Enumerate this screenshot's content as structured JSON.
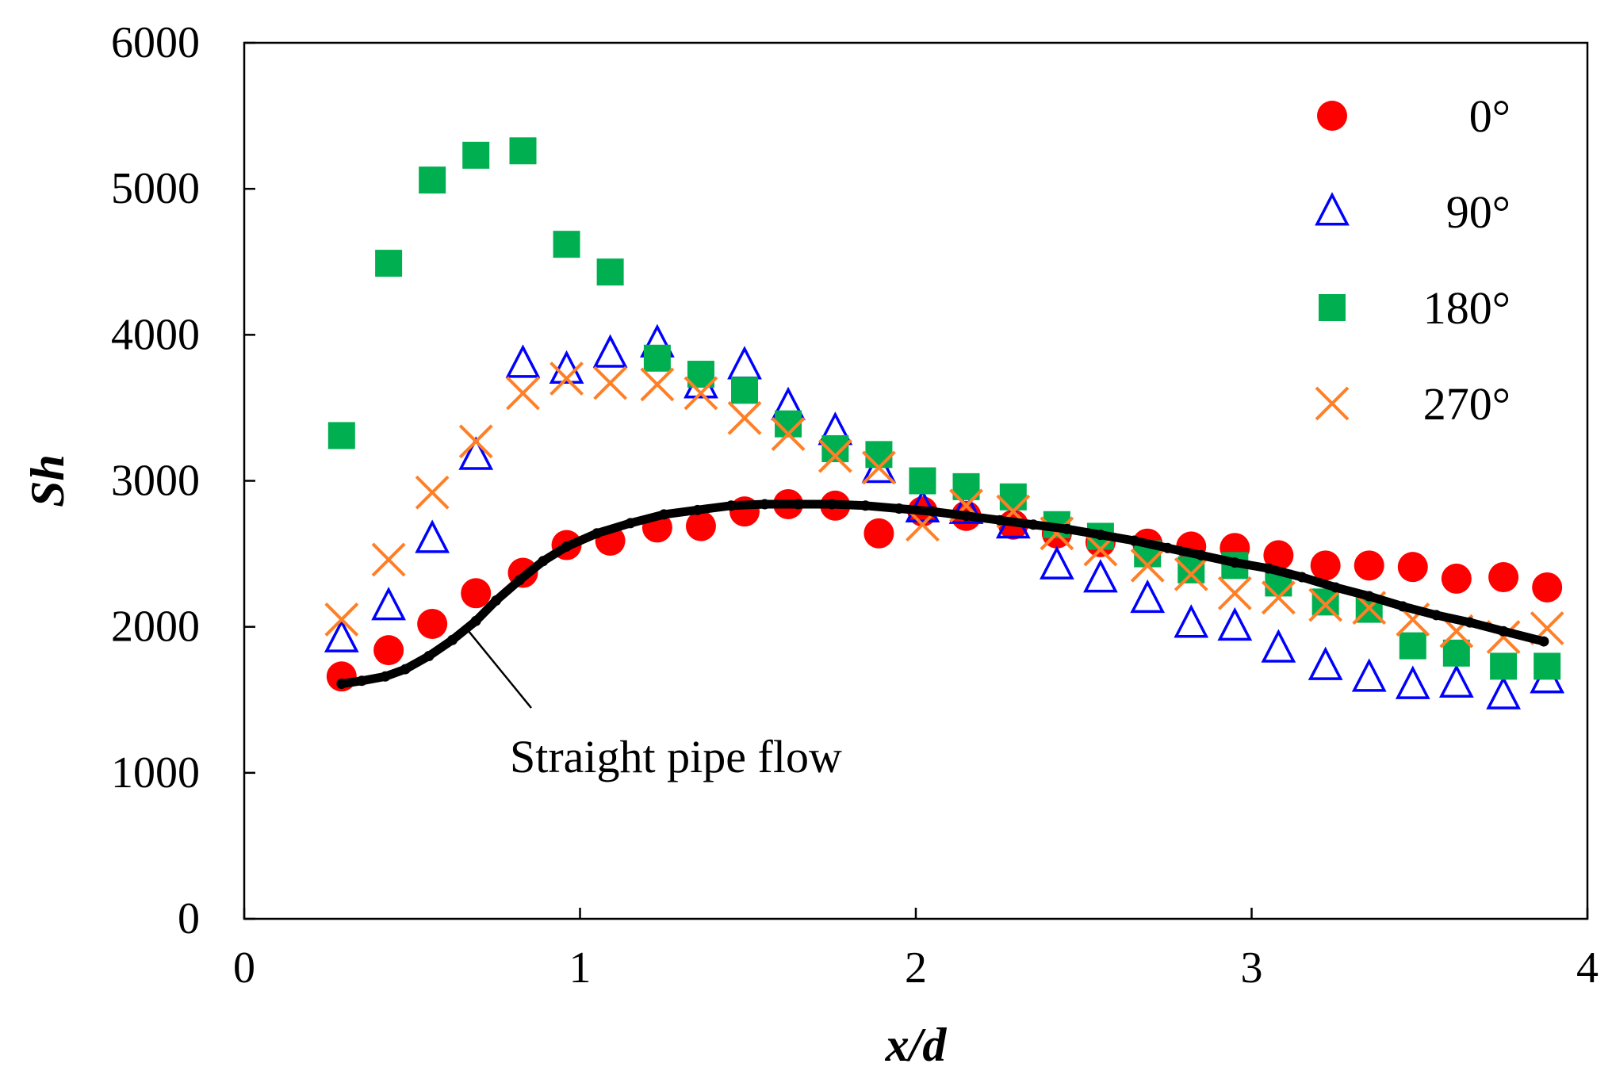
{
  "chart_data": {
    "type": "scatter",
    "title": "",
    "xlabel": "x/d",
    "ylabel": "Sh",
    "xlim": [
      0,
      4
    ],
    "ylim": [
      0,
      6000
    ],
    "xticks": [
      0,
      1,
      2,
      3,
      4
    ],
    "yticks": [
      0,
      1000,
      2000,
      3000,
      4000,
      5000,
      6000
    ],
    "legend_position": "top-right",
    "series": [
      {
        "name": "0°",
        "marker": "circle-filled",
        "color": "#ff0000",
        "x": [
          0.29,
          0.43,
          0.56,
          0.69,
          0.83,
          0.96,
          1.09,
          1.23,
          1.36,
          1.49,
          1.62,
          1.76,
          1.89,
          2.02,
          2.15,
          2.29,
          2.42,
          2.55,
          2.69,
          2.82,
          2.95,
          3.08,
          3.22,
          3.35,
          3.48,
          3.61,
          3.75,
          3.88
        ],
        "y": [
          1660,
          1840,
          2020,
          2230,
          2370,
          2560,
          2590,
          2680,
          2690,
          2790,
          2840,
          2830,
          2640,
          2790,
          2760,
          2700,
          2640,
          2580,
          2570,
          2550,
          2540,
          2490,
          2420,
          2420,
          2410,
          2330,
          2340,
          2270
        ]
      },
      {
        "name": "90°",
        "marker": "triangle-open",
        "color": "#0000ff",
        "x": [
          0.29,
          0.43,
          0.56,
          0.69,
          0.83,
          0.96,
          1.09,
          1.23,
          1.36,
          1.49,
          1.62,
          1.76,
          1.89,
          2.02,
          2.15,
          2.29,
          2.42,
          2.55,
          2.69,
          2.82,
          2.95,
          3.08,
          3.22,
          3.35,
          3.48,
          3.61,
          3.75,
          3.88
        ],
        "y": [
          1920,
          2140,
          2600,
          3170,
          3800,
          3760,
          3870,
          3940,
          3660,
          3790,
          3510,
          3340,
          3080,
          2810,
          2800,
          2700,
          2420,
          2330,
          2190,
          2020,
          2000,
          1850,
          1730,
          1650,
          1600,
          1610,
          1530,
          1640
        ]
      },
      {
        "name": "180°",
        "marker": "square-filled",
        "color": "#00b050",
        "x": [
          0.29,
          0.43,
          0.56,
          0.69,
          0.83,
          0.96,
          1.09,
          1.23,
          1.36,
          1.49,
          1.62,
          1.76,
          1.89,
          2.02,
          2.15,
          2.29,
          2.42,
          2.55,
          2.69,
          2.82,
          2.95,
          3.08,
          3.22,
          3.35,
          3.48,
          3.61,
          3.75,
          3.88
        ],
        "y": [
          3310,
          4490,
          5060,
          5230,
          5260,
          4620,
          4430,
          3840,
          3730,
          3620,
          3390,
          3220,
          3180,
          3000,
          2960,
          2890,
          2700,
          2620,
          2500,
          2390,
          2420,
          2300,
          2170,
          2120,
          1870,
          1820,
          1730,
          1730
        ]
      },
      {
        "name": "270°",
        "marker": "x",
        "color": "#ff7f27",
        "x": [
          0.29,
          0.43,
          0.56,
          0.69,
          0.83,
          0.96,
          1.09,
          1.23,
          1.36,
          1.49,
          1.62,
          1.76,
          1.89,
          2.02,
          2.15,
          2.29,
          2.42,
          2.55,
          2.69,
          2.82,
          2.95,
          3.08,
          3.22,
          3.35,
          3.48,
          3.61,
          3.75,
          3.88
        ],
        "y": [
          2050,
          2460,
          2920,
          3270,
          3600,
          3700,
          3670,
          3660,
          3600,
          3430,
          3320,
          3170,
          3090,
          2700,
          2830,
          2790,
          2640,
          2530,
          2420,
          2360,
          2230,
          2200,
          2150,
          2130,
          2050,
          1970,
          1930,
          1990
        ]
      },
      {
        "name": "Straight pipe flow",
        "marker": "line-dots",
        "color": "#000000",
        "x": [
          0.29,
          0.35,
          0.42,
          0.48,
          0.55,
          0.62,
          0.69,
          0.75,
          0.82,
          0.89,
          0.96,
          1.05,
          1.15,
          1.25,
          1.35,
          1.45,
          1.55,
          1.65,
          1.75,
          1.85,
          1.95,
          2.05,
          2.15,
          2.25,
          2.35,
          2.45,
          2.55,
          2.65,
          2.75,
          2.85,
          2.95,
          3.05,
          3.15,
          3.25,
          3.35,
          3.45,
          3.55,
          3.65,
          3.75,
          3.87
        ],
        "y": [
          1610,
          1630,
          1660,
          1710,
          1800,
          1910,
          2040,
          2180,
          2320,
          2450,
          2550,
          2640,
          2710,
          2770,
          2800,
          2830,
          2840,
          2840,
          2840,
          2830,
          2810,
          2790,
          2760,
          2730,
          2700,
          2670,
          2630,
          2590,
          2540,
          2490,
          2440,
          2400,
          2340,
          2270,
          2210,
          2140,
          2080,
          2030,
          1970,
          1900
        ]
      }
    ],
    "annotations": [
      {
        "text": "Straight pipe flow",
        "points_to": {
          "x": 0.68,
          "y": 2080
        }
      }
    ]
  }
}
